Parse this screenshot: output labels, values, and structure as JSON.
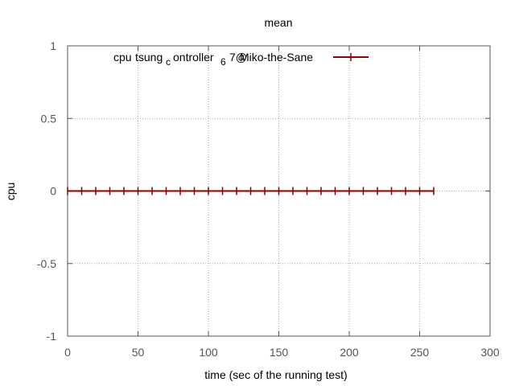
{
  "chart_data": {
    "type": "line",
    "title": "mean",
    "xlabel": "time (sec of the running test)",
    "ylabel": "cpu",
    "xlim": [
      0,
      300
    ],
    "ylim": [
      -1,
      1
    ],
    "xticks": [
      0,
      50,
      100,
      150,
      200,
      250,
      300
    ],
    "yticks": [
      -1,
      -0.5,
      0,
      0.5,
      1
    ],
    "xtick_labels": [
      "0",
      "50",
      "100",
      "150",
      "200",
      "250",
      "300"
    ],
    "ytick_labels": [
      "-1",
      "-0.5",
      "0",
      "0.5",
      "1"
    ],
    "grid": true,
    "legend_position": "top-right",
    "series": [
      {
        "name": "cpu tsung_controller_6 7@Miko-the-Sane",
        "legend_text": {
          "a": "cpu",
          "b": "tsung",
          "c": "c",
          "d": "ontroller",
          "e": "6",
          "f": "7@",
          "g": "Miko-the-Sane"
        },
        "color": "#8b0000",
        "x": [
          0,
          10,
          20,
          30,
          40,
          50,
          60,
          70,
          80,
          90,
          100,
          110,
          120,
          130,
          140,
          150,
          160,
          170,
          180,
          190,
          200,
          210,
          220,
          230,
          240,
          250,
          260
        ],
        "y": [
          0,
          0,
          0,
          0,
          0,
          0,
          0,
          0,
          0,
          0,
          0,
          0,
          0,
          0,
          0,
          0,
          0,
          0,
          0,
          0,
          0,
          0,
          0,
          0,
          0,
          0,
          0
        ]
      }
    ]
  }
}
